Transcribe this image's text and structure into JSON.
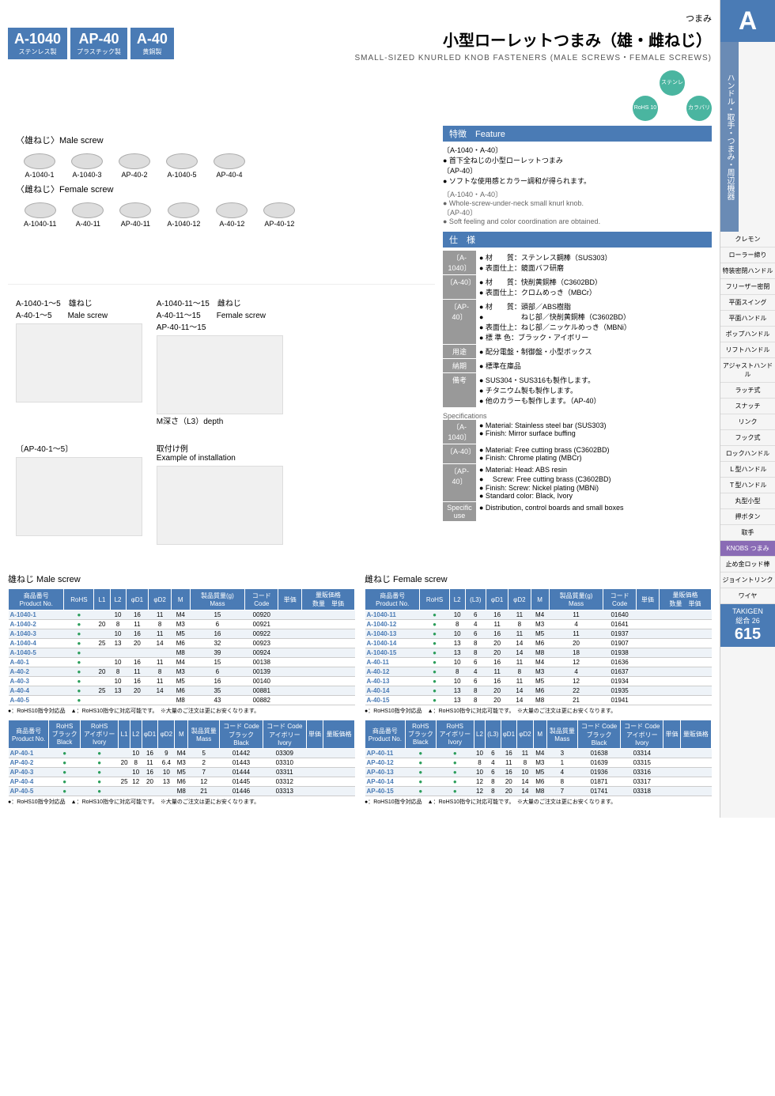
{
  "top_label": "つまみ",
  "codes": [
    {
      "code": "A-1040",
      "mat": "ステンレス製"
    },
    {
      "code": "AP-40",
      "mat": "プラスチック製"
    },
    {
      "code": "A-40",
      "mat": "黄銅製"
    }
  ],
  "title_jp": "小型ローレットつまみ（雄・雌ねじ）",
  "title_en": "SMALL-SIZED KNURLED KNOB FASTENERS (MALE SCREWS・FEMALE SCREWS)",
  "badges": [
    "RoHS 10",
    "ステンレス",
    "カラバリ"
  ],
  "male_label": "〈雄ねじ〉Male screw",
  "female_label": "〈雌ねじ〉Female screw",
  "product_imgs_male": [
    "A-1040-1",
    "A-1040-3",
    "AP-40-2",
    "A-1040-5",
    "AP-40-4"
  ],
  "product_imgs_female": [
    "A-1040-11",
    "A-40-11",
    "AP-40-11",
    "A-1040-12",
    "A-40-12",
    "AP-40-12"
  ],
  "feature_hdr": "特徴　Feature",
  "features_jp": [
    {
      "label": "〔A-1040・A-40〕",
      "text": "首下全ねじの小型ローレットつまみ"
    },
    {
      "label": "〔AP-40〕",
      "text": "ソフトな使用感とカラー調和が得られます。"
    }
  ],
  "features_en": [
    {
      "label": "〔A-1040・A-40〕",
      "text": "Whole-screw-under-neck small knurl knob."
    },
    {
      "label": "〔AP-40〕",
      "text": "Soft feeling and color coordination are obtained."
    }
  ],
  "spec_hdr": "仕　様",
  "specs_jp": [
    {
      "label": "〔A-1040〕",
      "lines": [
        "材　　質：ステンレス鋼棒（SUS303）",
        "表面仕上：鏡面バフ研磨"
      ]
    },
    {
      "label": "〔A-40〕",
      "lines": [
        "材　　質：快削黄銅棒（C3602BD）",
        "表面仕上：クロムめっき（MBCr）"
      ]
    },
    {
      "label": "〔AP-40〕",
      "lines": [
        "材　　質：頭部／ABS樹脂",
        "　　　　　ねじ部／快削黄銅棒（C3602BD）",
        "表面仕上：ねじ部／ニッケルめっき（MBNi）",
        "標 準 色：ブラック・アイボリー"
      ]
    },
    {
      "label": "用途",
      "lines": [
        "配分電盤・制御盤・小型ボックス"
      ]
    },
    {
      "label": "納期",
      "lines": [
        "標準在庫品"
      ]
    },
    {
      "label": "備考",
      "lines": [
        "SUS304・SUS316も製作します。",
        "チタニウム製も製作します。",
        "他のカラーも製作します。（AP-40）"
      ]
    }
  ],
  "spec_en_hdr": "Specifications",
  "specs_en": [
    {
      "label": "〔A-1040〕",
      "lines": [
        "Material: Stainless steel bar (SUS303)",
        "Finish: Mirror surface buffing"
      ]
    },
    {
      "label": "〔A-40〕",
      "lines": [
        "Material: Free cutting brass (C3602BD)",
        "Finish: Chrome plating (MBCr)"
      ]
    },
    {
      "label": "〔AP-40〕",
      "lines": [
        "Material: Head: ABS resin",
        "　Screw: Free cutting brass (C3602BD)",
        "Finish: Screw: Nickel plating (MBNi)",
        "Standard color: Black, Ivory"
      ]
    },
    {
      "label": "Specific use",
      "lines": [
        "Distribution, control boards and small boxes"
      ]
    }
  ],
  "diag_labels": {
    "male": "A-1040-1〜5　雄ねじ\nA-40-1〜5　　Male screw",
    "female": "A-1040-11〜15　雌ねじ\nA-40-11〜15　　Female screw\nAP-40-11〜15",
    "ap": "〔AP-40-1〜5〕",
    "install": "取付け例\nExample of installation",
    "depth": "M深さ（L3）depth"
  },
  "table_male_title": "雄ねじ Male screw",
  "table_female_title": "雌ねじ Female screw",
  "headers1": [
    "商品番号\nProduct No.",
    "RoHS",
    "L1",
    "L2",
    "φD1",
    "φD2",
    "M",
    "製品質量(g)\nMass",
    "コード\nCode",
    "単価",
    "量販価格\n数量　単価"
  ],
  "male_rows": [
    [
      "A-1040-1",
      "●",
      "",
      "10",
      "16",
      "11",
      "M4",
      "15",
      "00920",
      "",
      ""
    ],
    [
      "A-1040-2",
      "●",
      "20",
      "8",
      "11",
      "8",
      "M3",
      "6",
      "00921",
      "",
      ""
    ],
    [
      "A-1040-3",
      "●",
      "",
      "10",
      "16",
      "11",
      "M5",
      "16",
      "00922",
      "",
      ""
    ],
    [
      "A-1040-4",
      "●",
      "25",
      "13",
      "20",
      "14",
      "M6",
      "32",
      "00923",
      "",
      ""
    ],
    [
      "A-1040-5",
      "●",
      "",
      "",
      "",
      "",
      "M8",
      "39",
      "00924",
      "",
      ""
    ],
    [
      "A-40-1",
      "●",
      "",
      "10",
      "16",
      "11",
      "M4",
      "15",
      "00138",
      "",
      ""
    ],
    [
      "A-40-2",
      "●",
      "20",
      "8",
      "11",
      "8",
      "M3",
      "6",
      "00139",
      "",
      ""
    ],
    [
      "A-40-3",
      "●",
      "",
      "10",
      "16",
      "11",
      "M5",
      "16",
      "00140",
      "",
      ""
    ],
    [
      "A-40-4",
      "●",
      "25",
      "13",
      "20",
      "14",
      "M6",
      "35",
      "00881",
      "",
      ""
    ],
    [
      "A-40-5",
      "●",
      "",
      "",
      "",
      "",
      "M8",
      "43",
      "00882",
      "",
      ""
    ]
  ],
  "female_rows": [
    [
      "A-1040-11",
      "●",
      "10",
      "6",
      "16",
      "11",
      "M4",
      "11",
      "01640",
      "",
      ""
    ],
    [
      "A-1040-12",
      "●",
      "8",
      "4",
      "11",
      "8",
      "M3",
      "4",
      "01641",
      "",
      ""
    ],
    [
      "A-1040-13",
      "●",
      "10",
      "6",
      "16",
      "11",
      "M5",
      "11",
      "01937",
      "",
      ""
    ],
    [
      "A-1040-14",
      "●",
      "13",
      "8",
      "20",
      "14",
      "M6",
      "20",
      "01907",
      "",
      ""
    ],
    [
      "A-1040-15",
      "●",
      "13",
      "8",
      "20",
      "14",
      "M8",
      "18",
      "01938",
      "",
      ""
    ],
    [
      "A-40-11",
      "●",
      "10",
      "6",
      "16",
      "11",
      "M4",
      "12",
      "01636",
      "",
      ""
    ],
    [
      "A-40-12",
      "●",
      "8",
      "4",
      "11",
      "8",
      "M3",
      "4",
      "01637",
      "",
      ""
    ],
    [
      "A-40-13",
      "●",
      "10",
      "6",
      "16",
      "11",
      "M5",
      "12",
      "01934",
      "",
      ""
    ],
    [
      "A-40-14",
      "●",
      "13",
      "8",
      "20",
      "14",
      "M6",
      "22",
      "01935",
      "",
      ""
    ],
    [
      "A-40-15",
      "●",
      "13",
      "8",
      "20",
      "14",
      "M8",
      "21",
      "01941",
      "",
      ""
    ]
  ],
  "headers2": [
    "商品番号\nProduct No.",
    "RoHS\nブラック\nBlack",
    "RoHS\nアイボリー\nIvory",
    "L1",
    "L2",
    "φD1",
    "φD2",
    "M",
    "製品質量\nMass",
    "コード Code\nブラック\nBlack",
    "コード Code\nアイボリー\nIvory",
    "単価",
    "量販価格"
  ],
  "ap_male_rows": [
    [
      "AP-40-1",
      "●",
      "●",
      "",
      "10",
      "16",
      "9",
      "M4",
      "5",
      "01442",
      "03309",
      "",
      ""
    ],
    [
      "AP-40-2",
      "●",
      "●",
      "20",
      "8",
      "11",
      "6.4",
      "M3",
      "2",
      "01443",
      "03310",
      "",
      ""
    ],
    [
      "AP-40-3",
      "●",
      "●",
      "",
      "10",
      "16",
      "10",
      "M5",
      "7",
      "01444",
      "03311",
      "",
      ""
    ],
    [
      "AP-40-4",
      "●",
      "●",
      "25",
      "12",
      "20",
      "13",
      "M6",
      "12",
      "01445",
      "03312",
      "",
      ""
    ],
    [
      "AP-40-5",
      "●",
      "●",
      "",
      "",
      "",
      "",
      "M8",
      "21",
      "01446",
      "03313",
      "",
      ""
    ]
  ],
  "headers3": [
    "商品番号\nProduct No.",
    "RoHS\nブラック\nBlack",
    "RoHS\nアイボリー\nIvory",
    "L2",
    "(L3)",
    "φD1",
    "φD2",
    "M",
    "製品質量\nMass",
    "コード Code\nブラック\nBlack",
    "コード Code\nアイボリー\nIvory",
    "単価",
    "量販価格"
  ],
  "ap_female_rows": [
    [
      "AP-40-11",
      "●",
      "●",
      "10",
      "6",
      "16",
      "11",
      "M4",
      "3",
      "01638",
      "03314",
      "",
      ""
    ],
    [
      "AP-40-12",
      "●",
      "●",
      "8",
      "4",
      "11",
      "8",
      "M3",
      "1",
      "01639",
      "03315",
      "",
      ""
    ],
    [
      "AP-40-13",
      "●",
      "●",
      "10",
      "6",
      "16",
      "10",
      "M5",
      "4",
      "01936",
      "03316",
      "",
      ""
    ],
    [
      "AP-40-14",
      "●",
      "●",
      "12",
      "8",
      "20",
      "14",
      "M6",
      "8",
      "01871",
      "03317",
      "",
      ""
    ],
    [
      "AP-40-15",
      "●",
      "●",
      "12",
      "8",
      "20",
      "14",
      "M8",
      "7",
      "01741",
      "03318",
      "",
      ""
    ]
  ],
  "footnote": "●：RoHS10指令対応品　▲：RoHS10指令に対応可能です。　※大量のご注文は更にお安くなります。",
  "sidebar": {
    "letter": "A",
    "category": "ハンドル・取手・つまみ・周辺機器",
    "items": [
      "クレモン",
      "ローラー締り",
      "特装密閉ハンドル",
      "フリーザー密閉",
      "平面スイング",
      "平面ハンドル",
      "ポップハンドル",
      "リフトハンドル",
      "アジャストハンドル",
      "ラッチ式",
      "スナッチ",
      "リンク",
      "フック式",
      "ロックハンドル",
      "Ｌ型ハンドル",
      "Ｔ型ハンドル",
      "丸型小型",
      "押ボタン",
      "取手"
    ],
    "knobs": "KNOBS つまみ",
    "items2": [
      "止め金ロッド棒",
      "ジョイントリンク",
      "ワイヤ"
    ],
    "brand": "TAKIGEN",
    "catalog": "総合 26",
    "page": "615"
  }
}
